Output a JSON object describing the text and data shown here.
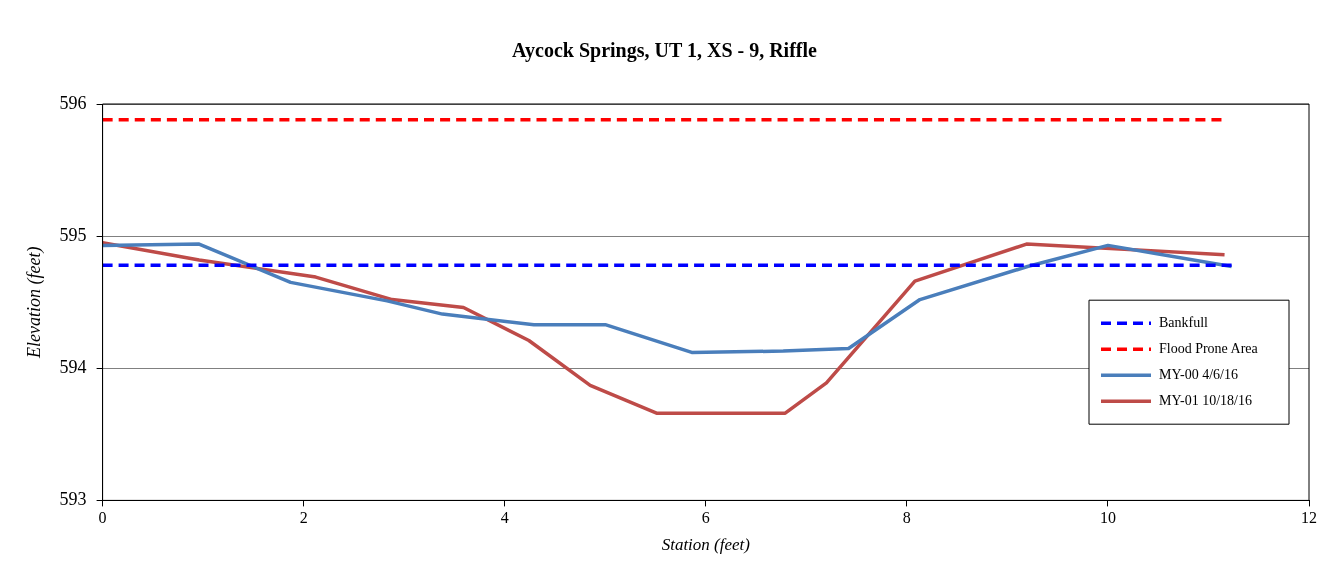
{
  "chart_data": {
    "type": "line",
    "title": "Aycock Springs, UT 1, XS - 9, Riffle",
    "xlabel": "Station (feet)",
    "ylabel": "Elevation (feet)",
    "xlim": [
      0,
      12
    ],
    "xticks": [
      0,
      2,
      4,
      6,
      8,
      10,
      12
    ],
    "ylim": [
      593,
      596
    ],
    "yticks": [
      593,
      594,
      595,
      596
    ],
    "grid": "y",
    "legend": "right",
    "marker": "none",
    "series": [
      {
        "name": "Bankfull",
        "color": "#0000ff",
        "line_style": "dashed",
        "x": [
          0,
          11.23
        ],
        "values": [
          594.78,
          594.78
        ]
      },
      {
        "name": "Flood Prone Area",
        "color": "#ff0000",
        "line_style": "dashed",
        "x": [
          0,
          11.13
        ],
        "values": [
          595.88,
          595.88
        ]
      },
      {
        "name": "MY-00 4/6/16",
        "color": "#4a7ebb",
        "line_style": "solid",
        "x": [
          0,
          0.96,
          1.87,
          2.83,
          3.38,
          4.29,
          5.0,
          5.86,
          6.77,
          7.42,
          8.13,
          9.2,
          10.0,
          11.23
        ],
        "values": [
          594.93,
          594.94,
          594.65,
          594.51,
          594.41,
          594.33,
          594.33,
          594.12,
          594.13,
          594.15,
          594.52,
          594.77,
          594.93,
          594.77
        ]
      },
      {
        "name": "MY-01 10/18/16",
        "color": "#be4b48",
        "line_style": "solid",
        "x": [
          0,
          0.96,
          2.12,
          2.88,
          3.59,
          4.24,
          4.85,
          5.51,
          6.79,
          7.2,
          8.08,
          9.19,
          11.16
        ],
        "values": [
          594.95,
          594.82,
          594.69,
          594.52,
          594.46,
          594.21,
          593.87,
          593.66,
          593.66,
          593.89,
          594.66,
          594.94,
          594.86
        ]
      }
    ]
  }
}
